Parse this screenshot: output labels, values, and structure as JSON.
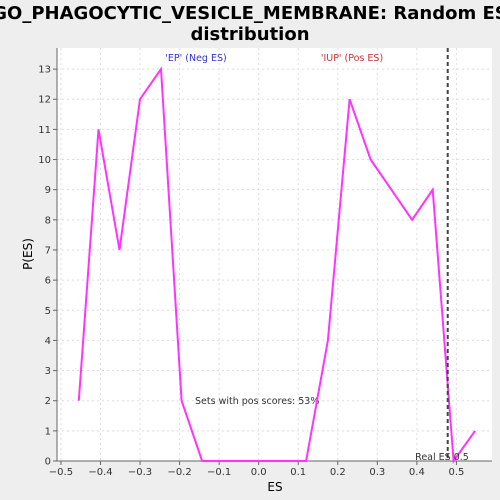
{
  "chart_data": {
    "type": "line",
    "title_lines": [
      "GO_PHAGOCYTIC_VESICLE_MEMBRANE: Random ES",
      "distribution"
    ],
    "xlabel": "ES",
    "ylabel": "P(ES)",
    "xlim": [
      -0.51,
      0.59
    ],
    "ylim": [
      0,
      13.7
    ],
    "xticks": [
      -0.5,
      -0.4,
      -0.3,
      -0.2,
      -0.1,
      0.0,
      0.1,
      0.2,
      0.3,
      0.4,
      0.5
    ],
    "xtick_labels": [
      "−0.5",
      "−0.4",
      "−0.3",
      "−0.2",
      "−0.1",
      "0.0",
      "0.1",
      "0.2",
      "0.3",
      "0.4",
      "0.5"
    ],
    "yticks": [
      0,
      1,
      2,
      3,
      4,
      5,
      6,
      7,
      8,
      9,
      10,
      11,
      12,
      13
    ],
    "grid": true,
    "series": [
      {
        "color": "#ff33ff",
        "x": [
          -0.455,
          -0.405,
          -0.352,
          -0.3,
          -0.247,
          -0.195,
          -0.143,
          0.12,
          0.175,
          0.23,
          0.283,
          0.388,
          0.44,
          0.493,
          0.547
        ],
        "y": [
          2,
          11,
          7,
          12,
          13,
          2,
          0,
          0,
          4,
          12,
          10,
          8,
          9,
          0,
          1
        ]
      }
    ],
    "real_es": {
      "x": 0.478,
      "label": "Real ES 0.5"
    },
    "annotations": {
      "neg_label": "'EP' (Neg ES)",
      "pos_label": "'IUP' (Pos ES)",
      "pos_scores": "Sets with pos scores: 53%"
    },
    "colors": {
      "neg_label": "#3333cc",
      "pos_label": "#cc3333",
      "line": "#ff33ff",
      "real_es": "#444444"
    }
  }
}
